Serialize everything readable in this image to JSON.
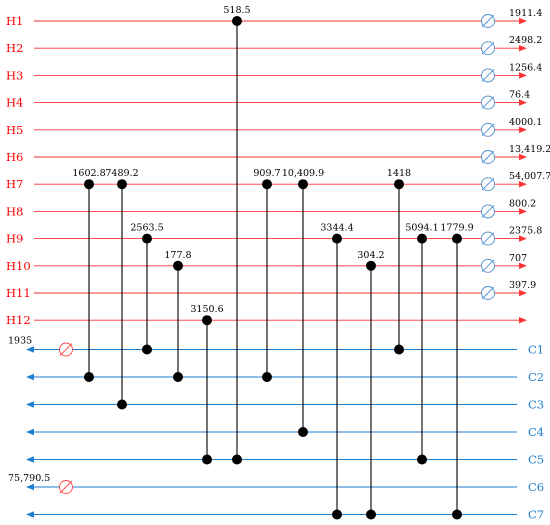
{
  "colors": {
    "hot_stream": "#ff3333",
    "cold_stream": "#1f7fd0",
    "hot_label": "#ff0000",
    "cold_label": "#1f7fd0",
    "utility_cooler": "#4a8fd0",
    "utility_heater": "#ff4444",
    "match": "#000000"
  },
  "hot_streams": [
    {
      "name": "H1",
      "cooler_duty": "1911.4"
    },
    {
      "name": "H2",
      "cooler_duty": "2498.2"
    },
    {
      "name": "H3",
      "cooler_duty": "1256.4"
    },
    {
      "name": "H4",
      "cooler_duty": "76.4"
    },
    {
      "name": "H5",
      "cooler_duty": "4000.1"
    },
    {
      "name": "H6",
      "cooler_duty": "13,419.2"
    },
    {
      "name": "H7",
      "cooler_duty": "54,007.7"
    },
    {
      "name": "H8",
      "cooler_duty": "800.2"
    },
    {
      "name": "H9",
      "cooler_duty": "2375.8"
    },
    {
      "name": "H10",
      "cooler_duty": "707"
    },
    {
      "name": "H11",
      "cooler_duty": "397.9"
    },
    {
      "name": "H12",
      "cooler_duty": ""
    }
  ],
  "cold_streams": [
    {
      "name": "C1",
      "heater_duty": "1935"
    },
    {
      "name": "C2",
      "heater_duty": ""
    },
    {
      "name": "C3",
      "heater_duty": ""
    },
    {
      "name": "C4",
      "heater_duty": ""
    },
    {
      "name": "C5",
      "heater_duty": ""
    },
    {
      "name": "C6",
      "heater_duty": "75,790.5"
    },
    {
      "name": "C7",
      "heater_duty": ""
    }
  ],
  "matches": [
    {
      "duty": "1602.8",
      "hot": "H7",
      "cold": "C2"
    },
    {
      "duty": "7489.2",
      "hot": "H7",
      "cold": "C3"
    },
    {
      "duty": "2563.5",
      "hot": "H9",
      "cold": "C1"
    },
    {
      "duty": "177.8",
      "hot": "H10",
      "cold": "C2"
    },
    {
      "duty": "3150.6",
      "hot": "H12",
      "cold": "C5"
    },
    {
      "duty": "518.5",
      "hot": "H1",
      "cold": "C5"
    },
    {
      "duty": "909.7",
      "hot": "H7",
      "cold": "C2"
    },
    {
      "duty": "10,409.9",
      "hot": "H7",
      "cold": "C4"
    },
    {
      "duty": "3344.4",
      "hot": "H9",
      "cold": "C7"
    },
    {
      "duty": "304.2",
      "hot": "H10",
      "cold": "C7"
    },
    {
      "duty": "1418",
      "hot": "H7",
      "cold": "C1"
    },
    {
      "duty": "5094.1",
      "hot": "H9",
      "cold": "C5"
    },
    {
      "duty": "1779.9",
      "hot": "H9",
      "cold": "C7"
    }
  ]
}
